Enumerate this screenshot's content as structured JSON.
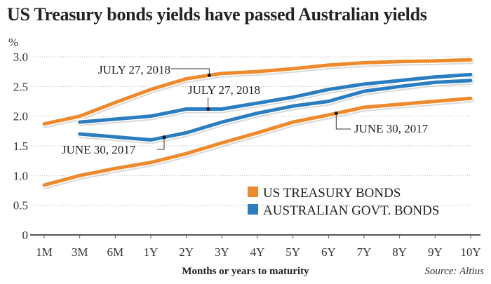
{
  "chart_data": {
    "type": "line",
    "title": "US Treasury bonds yields have passed Australian yields",
    "ylabel": "%",
    "xlabel": "Months or years to maturity",
    "source": "Source: Altius",
    "ylim": [
      0,
      3.0
    ],
    "yticks": [
      "0",
      "0.5",
      "1.0",
      "1.5",
      "2.0",
      "2.5",
      "3.0"
    ],
    "ytick_values": [
      0,
      0.5,
      1.0,
      1.5,
      2.0,
      2.5,
      3.0
    ],
    "categories": [
      "1M",
      "3M",
      "6M",
      "1Y",
      "2Y",
      "3Y",
      "4Y",
      "5Y",
      "6Y",
      "7Y",
      "8Y",
      "9Y",
      "10Y"
    ],
    "grid": true,
    "legend": {
      "placement": "bottom-right",
      "entries": [
        {
          "label": "US TREASURY BONDS",
          "color": "#ee8a2b"
        },
        {
          "label": "AUSTRALIAN GOVT. BONDS",
          "color": "#2a7dc0"
        }
      ]
    },
    "series": [
      {
        "name": "US Treasury bonds July 27, 2018",
        "group": "us",
        "color": "#ee8a2b",
        "values": [
          1.87,
          2.0,
          2.23,
          2.45,
          2.63,
          2.72,
          2.75,
          2.8,
          2.86,
          2.9,
          2.92,
          2.93,
          2.95
        ]
      },
      {
        "name": "US Treasury bonds June 30, 2017",
        "group": "us",
        "color": "#ee8a2b",
        "values": [
          0.84,
          1.0,
          1.12,
          1.22,
          1.37,
          1.55,
          1.72,
          1.9,
          2.02,
          2.15,
          2.2,
          2.25,
          2.3
        ]
      },
      {
        "name": "Australian govt bonds July 27, 2018",
        "group": "au",
        "color": "#2a7dc0",
        "values": [
          null,
          1.9,
          1.95,
          2.0,
          2.12,
          2.12,
          2.22,
          2.32,
          2.45,
          2.54,
          2.6,
          2.66,
          2.7
        ]
      },
      {
        "name": "Australian govt bonds June 30, 2017",
        "group": "au",
        "color": "#2a7dc0",
        "values": [
          null,
          1.7,
          1.65,
          1.6,
          1.72,
          1.9,
          2.05,
          2.17,
          2.25,
          2.42,
          2.5,
          2.57,
          2.6
        ]
      }
    ],
    "annotations": [
      {
        "text": "JULY 27, 2018",
        "series": 0,
        "at": "3Y"
      },
      {
        "text": "JULY 27, 2018",
        "series": 2,
        "at": "2Y"
      },
      {
        "text": "JUNE 30, 2017",
        "series": 3,
        "at": "1Y"
      },
      {
        "text": "JUNE 30, 2017",
        "series": 1,
        "at": "6Y"
      }
    ]
  }
}
